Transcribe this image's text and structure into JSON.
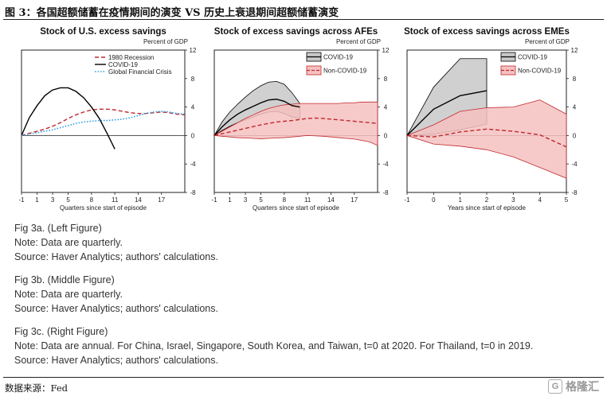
{
  "figure_title": "图 3：各国超额储蓄在疫情期间的演变 VS 历史上衰退期间超额储蓄演变",
  "source_line": "数据来源：Fed",
  "watermark": {
    "text": "格隆汇",
    "mark": "G"
  },
  "colors": {
    "covid": "#000000",
    "recession": "#c0282d",
    "gfc": "#2e9fe3",
    "covid_band": "#c8c8c8",
    "noncovid_band": "#f6c1c1"
  },
  "notes": [
    {
      "title": "Fig 3a. (Left Figure)",
      "lines": [
        "Note: Data are quarterly.",
        "Source: Haver Analytics; authors' calculations."
      ]
    },
    {
      "title": "Fig 3b. (Middle Figure)",
      "lines": [
        "Note: Data are quarterly.",
        "Source: Haver Analytics; authors' calculations."
      ]
    },
    {
      "title": "Fig 3c. (Right Figure)",
      "lines": [
        "Note: Data are annual. For China, Israel, Singapore, South Korea, and Taiwan, t=0 at 2020. For Thailand, t=0 in 2019.",
        "Source: Haver Analytics; authors' calculations."
      ]
    }
  ],
  "chart_data": [
    {
      "type": "line",
      "title": "Stock of U.S. excess savings",
      "ylabel": "Percent of GDP",
      "xlabel": "Quarters since start of episode",
      "xlim": [
        -1,
        20
      ],
      "ylim": [
        -8,
        12
      ],
      "xticks": [
        -1,
        1,
        3,
        5,
        8,
        11,
        14,
        17
      ],
      "yticks": [
        12,
        8,
        4,
        0,
        -4,
        -8
      ],
      "legend": "top-center",
      "series": [
        {
          "name": "1980 Recession",
          "style": "dashed",
          "color": "#c0282d",
          "x": [
            -1,
            0,
            1,
            2,
            3,
            4,
            5,
            6,
            7,
            8,
            9,
            10,
            11,
            12,
            13,
            14,
            15,
            16,
            17,
            18,
            19,
            20
          ],
          "y": [
            0,
            0.3,
            0.6,
            0.9,
            1.3,
            1.8,
            2.4,
            2.9,
            3.3,
            3.6,
            3.7,
            3.7,
            3.6,
            3.4,
            3.2,
            3.1,
            3.1,
            3.2,
            3.3,
            3.2,
            3.0,
            2.9
          ]
        },
        {
          "name": "COVID-19",
          "style": "solid",
          "color": "#000000",
          "x": [
            -1,
            0,
            1,
            2,
            3,
            4,
            5,
            6,
            7,
            8,
            9,
            10,
            11
          ],
          "y": [
            0,
            2.5,
            4.2,
            5.6,
            6.4,
            6.7,
            6.7,
            6.2,
            5.3,
            4.0,
            2.4,
            0.3,
            -1.9
          ]
        },
        {
          "name": "Global Financial Crisis",
          "style": "dotted",
          "color": "#2e9fe3",
          "x": [
            -1,
            0,
            1,
            2,
            3,
            4,
            5,
            6,
            7,
            8,
            9,
            10,
            11,
            12,
            13,
            14,
            15,
            16,
            17,
            18,
            19,
            20
          ],
          "y": [
            0,
            0.2,
            0.4,
            0.6,
            0.8,
            1.1,
            1.4,
            1.7,
            1.9,
            2.0,
            2.1,
            2.1,
            2.2,
            2.3,
            2.5,
            2.8,
            3.1,
            3.3,
            3.4,
            3.3,
            3.1,
            3.0
          ]
        }
      ]
    },
    {
      "type": "area",
      "title": "Stock of excess savings across AFEs",
      "ylabel": "Percent of GDP",
      "xlabel": "Quarters since start of episode",
      "xlim": [
        -1,
        20
      ],
      "ylim": [
        -8,
        12
      ],
      "xticks": [
        -1,
        1,
        3,
        5,
        8,
        11,
        14,
        17
      ],
      "yticks": [
        12,
        8,
        4,
        0,
        -4,
        -8
      ],
      "legend": "top-center",
      "series": [
        {
          "name": "COVID-19",
          "style": "solid",
          "color": "#000000",
          "band": "#c8c8c8",
          "x": [
            -1,
            0,
            1,
            2,
            3,
            4,
            5,
            6,
            7,
            8,
            9,
            10
          ],
          "y": [
            0,
            1.2,
            2.2,
            3.0,
            3.6,
            4.1,
            4.6,
            5.0,
            5.1,
            4.8,
            4.2,
            4.0
          ],
          "lower": [
            0,
            0.7,
            1.3,
            1.8,
            2.2,
            2.6,
            3.0,
            3.3,
            3.4,
            3.1,
            2.6,
            2.4
          ],
          "upper": [
            0,
            1.9,
            3.3,
            4.4,
            5.4,
            6.3,
            7.0,
            7.5,
            7.6,
            7.2,
            6.0,
            4.5
          ]
        },
        {
          "name": "Non-COVID-19",
          "style": "dashed",
          "color": "#c0282d",
          "band": "#f6c1c1",
          "x": [
            -1,
            0,
            1,
            2,
            3,
            4,
            5,
            6,
            7,
            8,
            9,
            10,
            11,
            12,
            13,
            14,
            15,
            16,
            17,
            18,
            19,
            20
          ],
          "y": [
            0,
            0.25,
            0.5,
            0.75,
            1.0,
            1.25,
            1.5,
            1.7,
            1.9,
            2.0,
            2.1,
            2.25,
            2.4,
            2.45,
            2.4,
            2.3,
            2.2,
            2.1,
            2.0,
            1.9,
            1.8,
            1.7
          ],
          "lower": [
            0,
            -0.1,
            -0.2,
            -0.3,
            -0.35,
            -0.4,
            -0.45,
            -0.4,
            -0.35,
            -0.3,
            -0.2,
            -0.1,
            0,
            -0.05,
            -0.1,
            -0.2,
            -0.3,
            -0.4,
            -0.5,
            -0.7,
            -0.9,
            -1.4
          ],
          "upper": [
            0,
            0.6,
            1.2,
            1.8,
            2.4,
            2.9,
            3.4,
            3.8,
            4.1,
            4.3,
            4.4,
            4.5,
            4.5,
            4.5,
            4.5,
            4.5,
            4.5,
            4.6,
            4.6,
            4.7,
            4.7,
            4.7
          ]
        }
      ]
    },
    {
      "type": "area",
      "title": "Stock of excess savings across EMEs",
      "ylabel": "Percent of GDP",
      "xlabel": "Years since start of episode",
      "xlim": [
        -1,
        5
      ],
      "ylim": [
        -8,
        12
      ],
      "xticks": [
        -1,
        0,
        1,
        2,
        3,
        4,
        5
      ],
      "yticks": [
        12,
        8,
        4,
        0,
        -4,
        -8
      ],
      "legend": "top-left",
      "series": [
        {
          "name": "COVID-19",
          "style": "solid",
          "color": "#000000",
          "band": "#c8c8c8",
          "x": [
            -1,
            0,
            1,
            2
          ],
          "y": [
            0,
            3.7,
            5.6,
            6.3
          ],
          "lower": [
            0,
            0.2,
            0.8,
            1.6
          ],
          "upper": [
            0,
            6.8,
            10.8,
            10.8
          ]
        },
        {
          "name": "Non-COVID-19",
          "style": "dashed",
          "color": "#c0282d",
          "band": "#f6c1c1",
          "x": [
            -1,
            0,
            1,
            2,
            3,
            4,
            5
          ],
          "y": [
            0,
            -0.2,
            0.5,
            0.9,
            0.6,
            0.1,
            -1.6
          ],
          "lower": [
            0,
            -1.2,
            -1.5,
            -2.0,
            -3.0,
            -4.5,
            -6.0
          ],
          "upper": [
            0,
            1.5,
            3.4,
            3.9,
            4.0,
            5.0,
            3.0
          ]
        }
      ]
    }
  ]
}
